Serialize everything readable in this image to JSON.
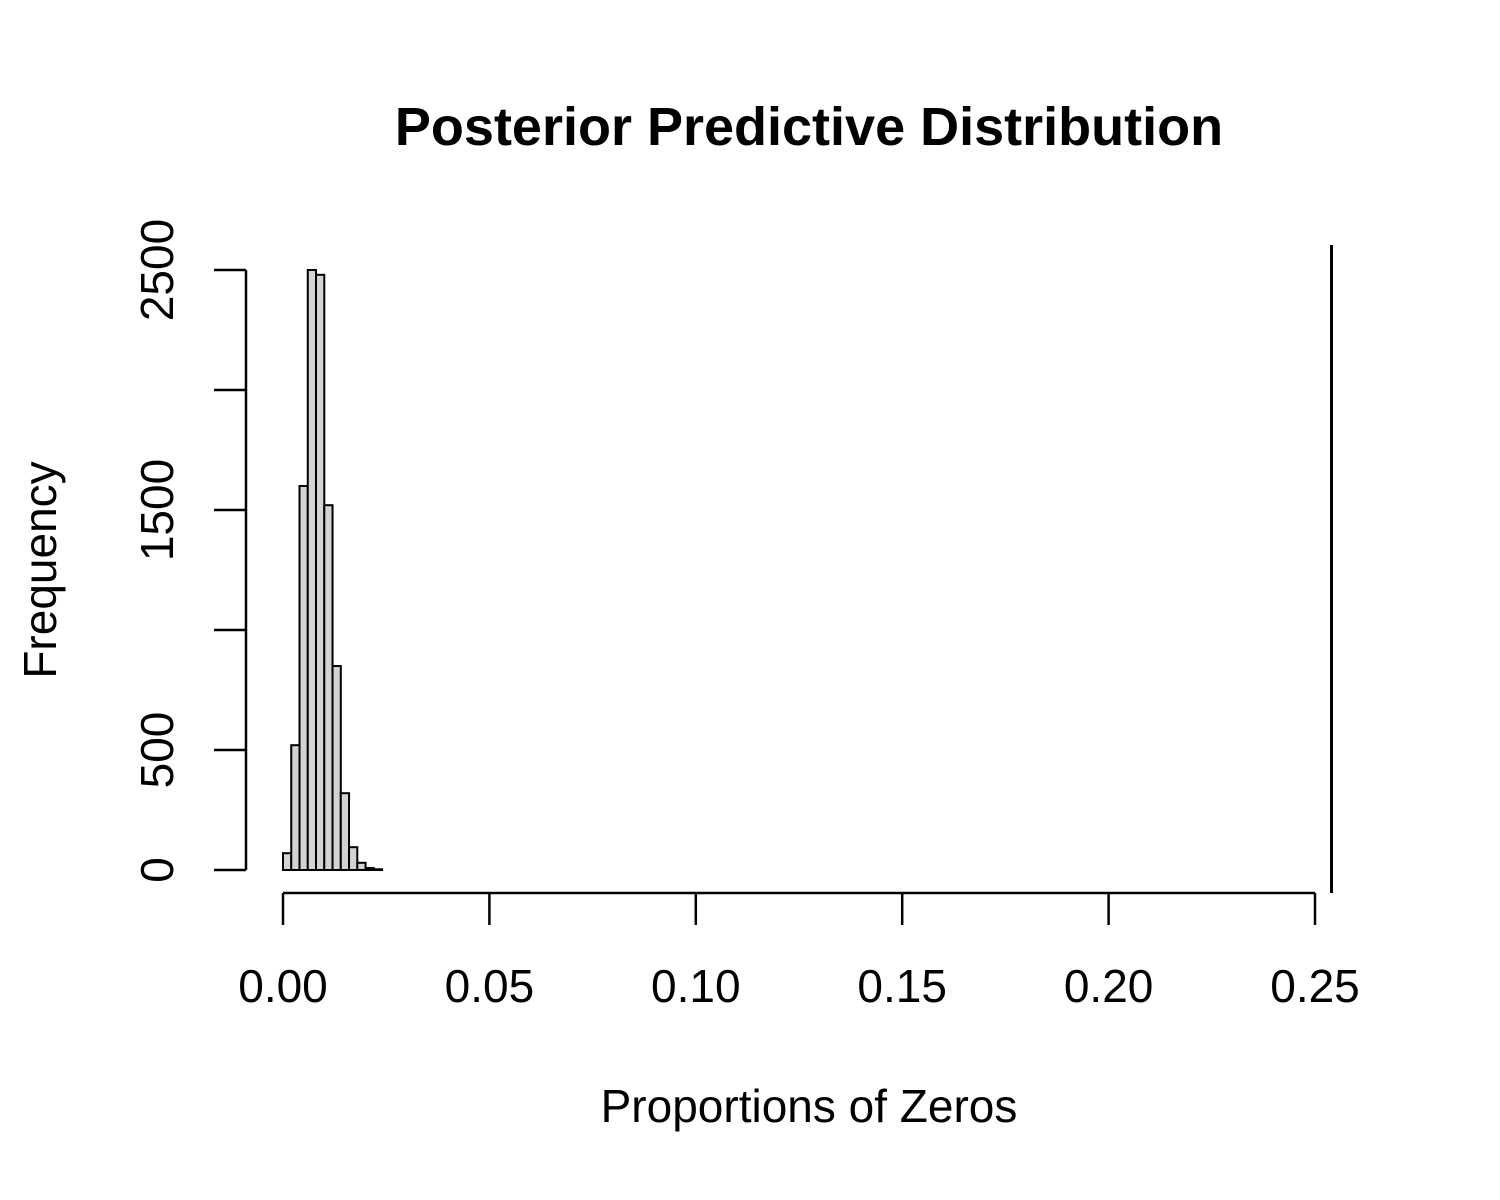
{
  "chart_data": {
    "type": "bar",
    "title": "Posterior Predictive Distribution",
    "xlabel": "Proportions of Zeros",
    "ylabel": "Frequency",
    "xlim": [
      0,
      0.25
    ],
    "ylim": [
      0,
      2500
    ],
    "x_ticks": [
      0.0,
      0.05,
      0.1,
      0.15,
      0.2,
      0.25
    ],
    "x_tick_labels": [
      "0.00",
      "0.05",
      "0.10",
      "0.15",
      "0.20",
      "0.25"
    ],
    "y_ticks": [
      0,
      500,
      1000,
      1500,
      2000,
      2500
    ],
    "y_tick_labels": [
      "0",
      "500",
      "",
      "1500",
      "",
      "2500"
    ],
    "bin_width": 0.002,
    "bins": [
      {
        "x0": 0.0,
        "x1": 0.002,
        "count": 70
      },
      {
        "x0": 0.002,
        "x1": 0.004,
        "count": 520
      },
      {
        "x0": 0.004,
        "x1": 0.006,
        "count": 1600
      },
      {
        "x0": 0.006,
        "x1": 0.008,
        "count": 2500
      },
      {
        "x0": 0.008,
        "x1": 0.01,
        "count": 2480
      },
      {
        "x0": 0.01,
        "x1": 0.012,
        "count": 1520
      },
      {
        "x0": 0.012,
        "x1": 0.014,
        "count": 850
      },
      {
        "x0": 0.014,
        "x1": 0.016,
        "count": 320
      },
      {
        "x0": 0.016,
        "x1": 0.018,
        "count": 95
      },
      {
        "x0": 0.018,
        "x1": 0.02,
        "count": 30
      },
      {
        "x0": 0.02,
        "x1": 0.022,
        "count": 8
      },
      {
        "x0": 0.022,
        "x1": 0.024,
        "count": 3
      }
    ],
    "observed_value": 0.254,
    "grid": false,
    "bar_fill": "#d3d3d3",
    "bar_stroke": "#000000"
  }
}
